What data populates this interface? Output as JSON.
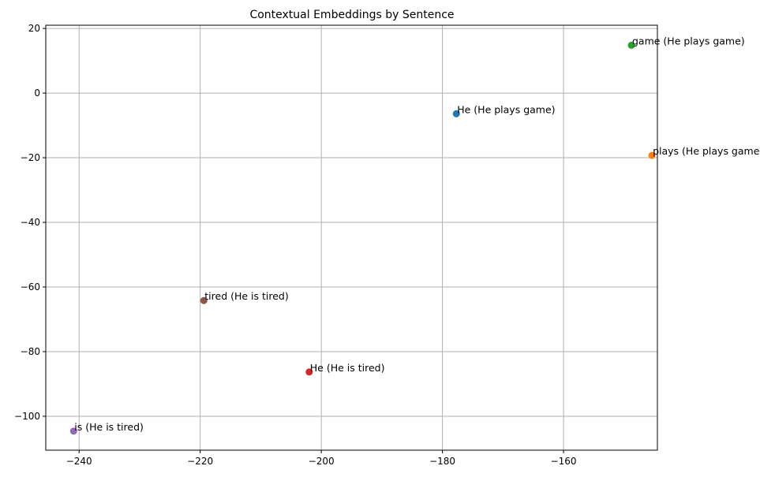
{
  "chart_data": {
    "type": "scatter",
    "title": "Contextual Embeddings by Sentence",
    "xlabel": "",
    "ylabel": "",
    "xlim": [
      -245.5,
      -144.5
    ],
    "ylim": [
      -110.5,
      21
    ],
    "xticks": [
      -240,
      -220,
      -200,
      -180,
      -160
    ],
    "yticks": [
      20,
      0,
      -20,
      -40,
      -60,
      -80,
      -100
    ],
    "grid": true,
    "points": [
      {
        "x": -177.7,
        "y": -6.4,
        "label": "He (He plays game)",
        "color": "#1f77b4"
      },
      {
        "x": -145.4,
        "y": -19.3,
        "label": "plays (He plays game)",
        "color": "#ff7f0e"
      },
      {
        "x": -148.8,
        "y": 14.8,
        "label": "game (He plays game)",
        "color": "#2ca02c"
      },
      {
        "x": -202.0,
        "y": -86.3,
        "label": "He (He is tired)",
        "color": "#d62728"
      },
      {
        "x": -240.9,
        "y": -104.6,
        "label": "is (He is tired)",
        "color": "#9467bd"
      },
      {
        "x": -219.4,
        "y": -64.2,
        "label": "tired (He is tired)",
        "color": "#8c564b"
      }
    ]
  }
}
